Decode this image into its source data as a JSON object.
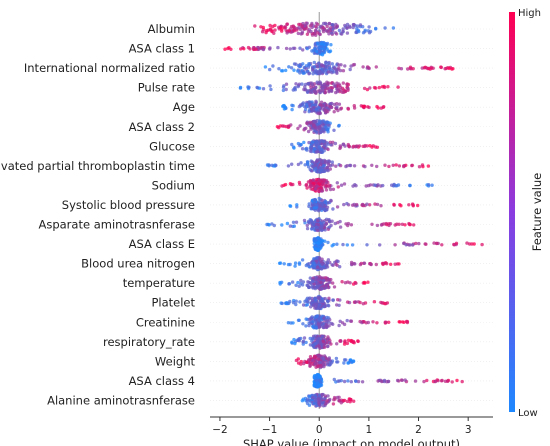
{
  "chart_data": {
    "type": "scatter",
    "subtype": "shap-beeswarm",
    "xlabel": "SHAP value (impact on model output)",
    "xlim": [
      -2.2,
      3.5
    ],
    "xticks": [
      -2,
      -1,
      0,
      1,
      2,
      3
    ],
    "colorbar": {
      "label": "Feature value",
      "high": "High",
      "low": "Low"
    },
    "colors": {
      "low": "#1e88ff",
      "high": "#ff0052"
    },
    "features": [
      {
        "name": "Albumin",
        "min": -1.3,
        "max": 1.5,
        "core": [
          -0.9,
          0.7
        ],
        "low_side": "right",
        "density": 0.9
      },
      {
        "name": "ASA class 1",
        "min": -1.95,
        "max": 0.25,
        "core": [
          -0.1,
          0.2
        ],
        "low_side": "right",
        "density": 0.45
      },
      {
        "name": "International normalized ratio",
        "min": -1.1,
        "max": 2.8,
        "core": [
          -0.5,
          0.5
        ],
        "low_side": "left",
        "density": 0.75
      },
      {
        "name": "Pulse rate",
        "min": -1.6,
        "max": 1.6,
        "core": [
          -0.4,
          0.5
        ],
        "low_side": "left",
        "density": 0.7
      },
      {
        "name": "Age",
        "min": -0.8,
        "max": 1.3,
        "core": [
          -0.3,
          0.3
        ],
        "low_side": "left",
        "density": 0.7
      },
      {
        "name": "ASA class 2",
        "min": -0.85,
        "max": 0.45,
        "core": [
          -0.2,
          0.2
        ],
        "low_side": "right",
        "density": 0.5
      },
      {
        "name": "Glucose",
        "min": -0.6,
        "max": 1.2,
        "core": [
          -0.2,
          0.2
        ],
        "low_side": "left",
        "density": 0.6
      },
      {
        "name": "Activated partial thromboplastin time",
        "min": -1.1,
        "max": 2.3,
        "core": [
          -0.2,
          0.2
        ],
        "low_side": "left",
        "density": 0.65
      },
      {
        "name": "Sodium",
        "min": -0.8,
        "max": 2.3,
        "core": [
          -0.2,
          0.2
        ],
        "low_side": "right",
        "density": 0.65
      },
      {
        "name": "Systolic blood pressure",
        "min": -0.6,
        "max": 2.0,
        "core": [
          -0.2,
          0.2
        ],
        "low_side": "left",
        "density": 0.6
      },
      {
        "name": "Asparate aminotrasnferase",
        "min": -1.1,
        "max": 2.0,
        "core": [
          -0.2,
          0.2
        ],
        "low_side": "left",
        "density": 0.6
      },
      {
        "name": "ASA class E",
        "min": -0.1,
        "max": 3.4,
        "core": [
          -0.1,
          0.05
        ],
        "low_side": "left",
        "density": 0.6
      },
      {
        "name": "Blood urea nitrogen",
        "min": -0.8,
        "max": 1.7,
        "core": [
          -0.2,
          0.2
        ],
        "low_side": "left",
        "density": 0.6
      },
      {
        "name": "temperature",
        "min": -0.8,
        "max": 1.0,
        "core": [
          -0.2,
          0.2
        ],
        "low_side": "left",
        "density": 0.55
      },
      {
        "name": "Platelet",
        "min": -0.8,
        "max": 1.6,
        "core": [
          -0.2,
          0.2
        ],
        "low_side": "left",
        "density": 0.55
      },
      {
        "name": "Creatinine",
        "min": -0.7,
        "max": 1.8,
        "core": [
          -0.2,
          0.2
        ],
        "low_side": "left",
        "density": 0.55
      },
      {
        "name": "respiratory_rate",
        "min": -0.6,
        "max": 0.8,
        "core": [
          -0.2,
          0.2
        ],
        "low_side": "left",
        "density": 0.5
      },
      {
        "name": "Weight",
        "min": -0.5,
        "max": 0.7,
        "core": [
          -0.2,
          0.2
        ],
        "low_side": "right",
        "density": 0.5
      },
      {
        "name": "ASA class 4",
        "min": -0.1,
        "max": 2.9,
        "core": [
          -0.1,
          0.05
        ],
        "low_side": "left",
        "density": 0.6
      },
      {
        "name": "Alanine aminotrasnferase",
        "min": -0.4,
        "max": 0.7,
        "core": [
          -0.2,
          0.2
        ],
        "low_side": "left",
        "density": 0.45
      }
    ]
  }
}
